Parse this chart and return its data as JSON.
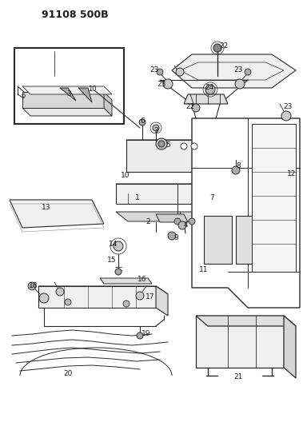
{
  "title": "91108 500B",
  "bg_color": "#ffffff",
  "line_color": "#2a2a2a",
  "text_color": "#1a1a1a",
  "fig_width": 3.84,
  "fig_height": 5.33,
  "dpi": 100
}
